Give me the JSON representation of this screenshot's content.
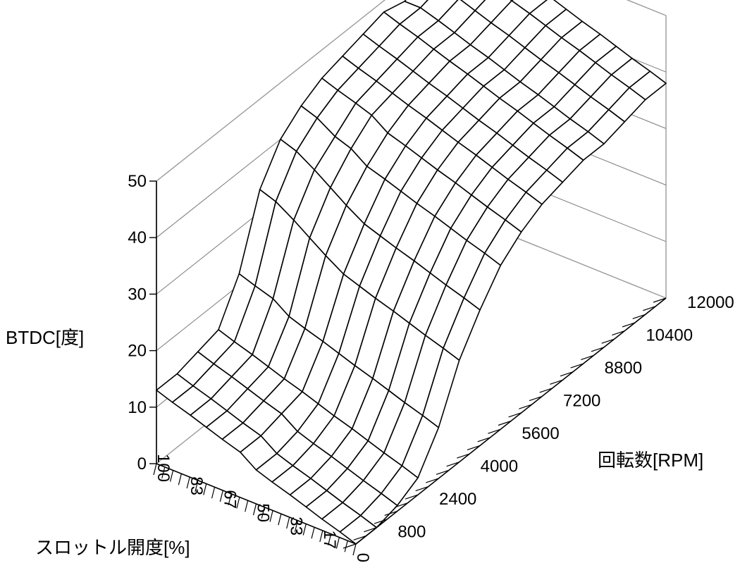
{
  "chart_data": {
    "type": "surface",
    "title": "",
    "zlabel": "BTDC[度]",
    "rpm_label": "回転数[RPM]",
    "throttle_label": "スロットル開度[%]",
    "zlim": [
      0,
      50
    ],
    "z_ticks": [
      "0",
      "10",
      "20",
      "30",
      "40",
      "50"
    ],
    "rpm_range": [
      0,
      12000
    ],
    "rpm_ticks": [
      "800",
      "2400",
      "4000",
      "5600",
      "7200",
      "8800",
      "10400",
      "12000"
    ],
    "throttle_range": [
      0,
      100
    ],
    "throttle_ticks": [
      "100",
      "83",
      "67",
      "50",
      "33",
      "17",
      "0"
    ],
    "grid": true,
    "rpm": [
      0,
      800,
      1600,
      2400,
      3200,
      4000,
      4800,
      5600,
      6400,
      7200,
      8000,
      8800,
      9600,
      10400,
      11200,
      12000
    ],
    "throttle": [
      100,
      92,
      83,
      75,
      67,
      58,
      50,
      42,
      33,
      25,
      17,
      8,
      0
    ],
    "values": [
      [
        13,
        13,
        14,
        15,
        22,
        34,
        40,
        43,
        45,
        46,
        47,
        48,
        47,
        48,
        49,
        50
      ],
      [
        12,
        12,
        13,
        14,
        21,
        33,
        39,
        42,
        44,
        45,
        46,
        47,
        47,
        48,
        49,
        49
      ],
      [
        11,
        11,
        12,
        13,
        20,
        31,
        37,
        40,
        43,
        44,
        45,
        46,
        46,
        47,
        48,
        48
      ],
      [
        10,
        10,
        11,
        12,
        18,
        29,
        35,
        39,
        42,
        43,
        44,
        45,
        45,
        46,
        47,
        47
      ],
      [
        9,
        9,
        10,
        11,
        17,
        27,
        33,
        37,
        40,
        42,
        43,
        44,
        44,
        45,
        46,
        46
      ],
      [
        8,
        8,
        9,
        10,
        16,
        25,
        31,
        36,
        39,
        41,
        42,
        43,
        43,
        44,
        45,
        45
      ],
      [
        6,
        6,
        7,
        9,
        15,
        24,
        30,
        35,
        38,
        40,
        41,
        42,
        42,
        43,
        44,
        44
      ],
      [
        5,
        5,
        6,
        8,
        14,
        23,
        29,
        34,
        37,
        39,
        40,
        41,
        41,
        42,
        43,
        43
      ],
      [
        4,
        4,
        5,
        7,
        13,
        22,
        28,
        33,
        36,
        38,
        39,
        40,
        40,
        41,
        42,
        42
      ],
      [
        3,
        3,
        4,
        6,
        12,
        21,
        27,
        32,
        35,
        37,
        38,
        39,
        39,
        40,
        41,
        41
      ],
      [
        2,
        2,
        3,
        5,
        11,
        20,
        26,
        31,
        34,
        36,
        37,
        38,
        38,
        39,
        40,
        40
      ],
      [
        1,
        1,
        2,
        4,
        10,
        19,
        25,
        30,
        33,
        35,
        36,
        37,
        37,
        38,
        39,
        39
      ],
      [
        0,
        0,
        1,
        3,
        9,
        18,
        24,
        29,
        32,
        34,
        35,
        36,
        36,
        37,
        38,
        38
      ]
    ]
  }
}
